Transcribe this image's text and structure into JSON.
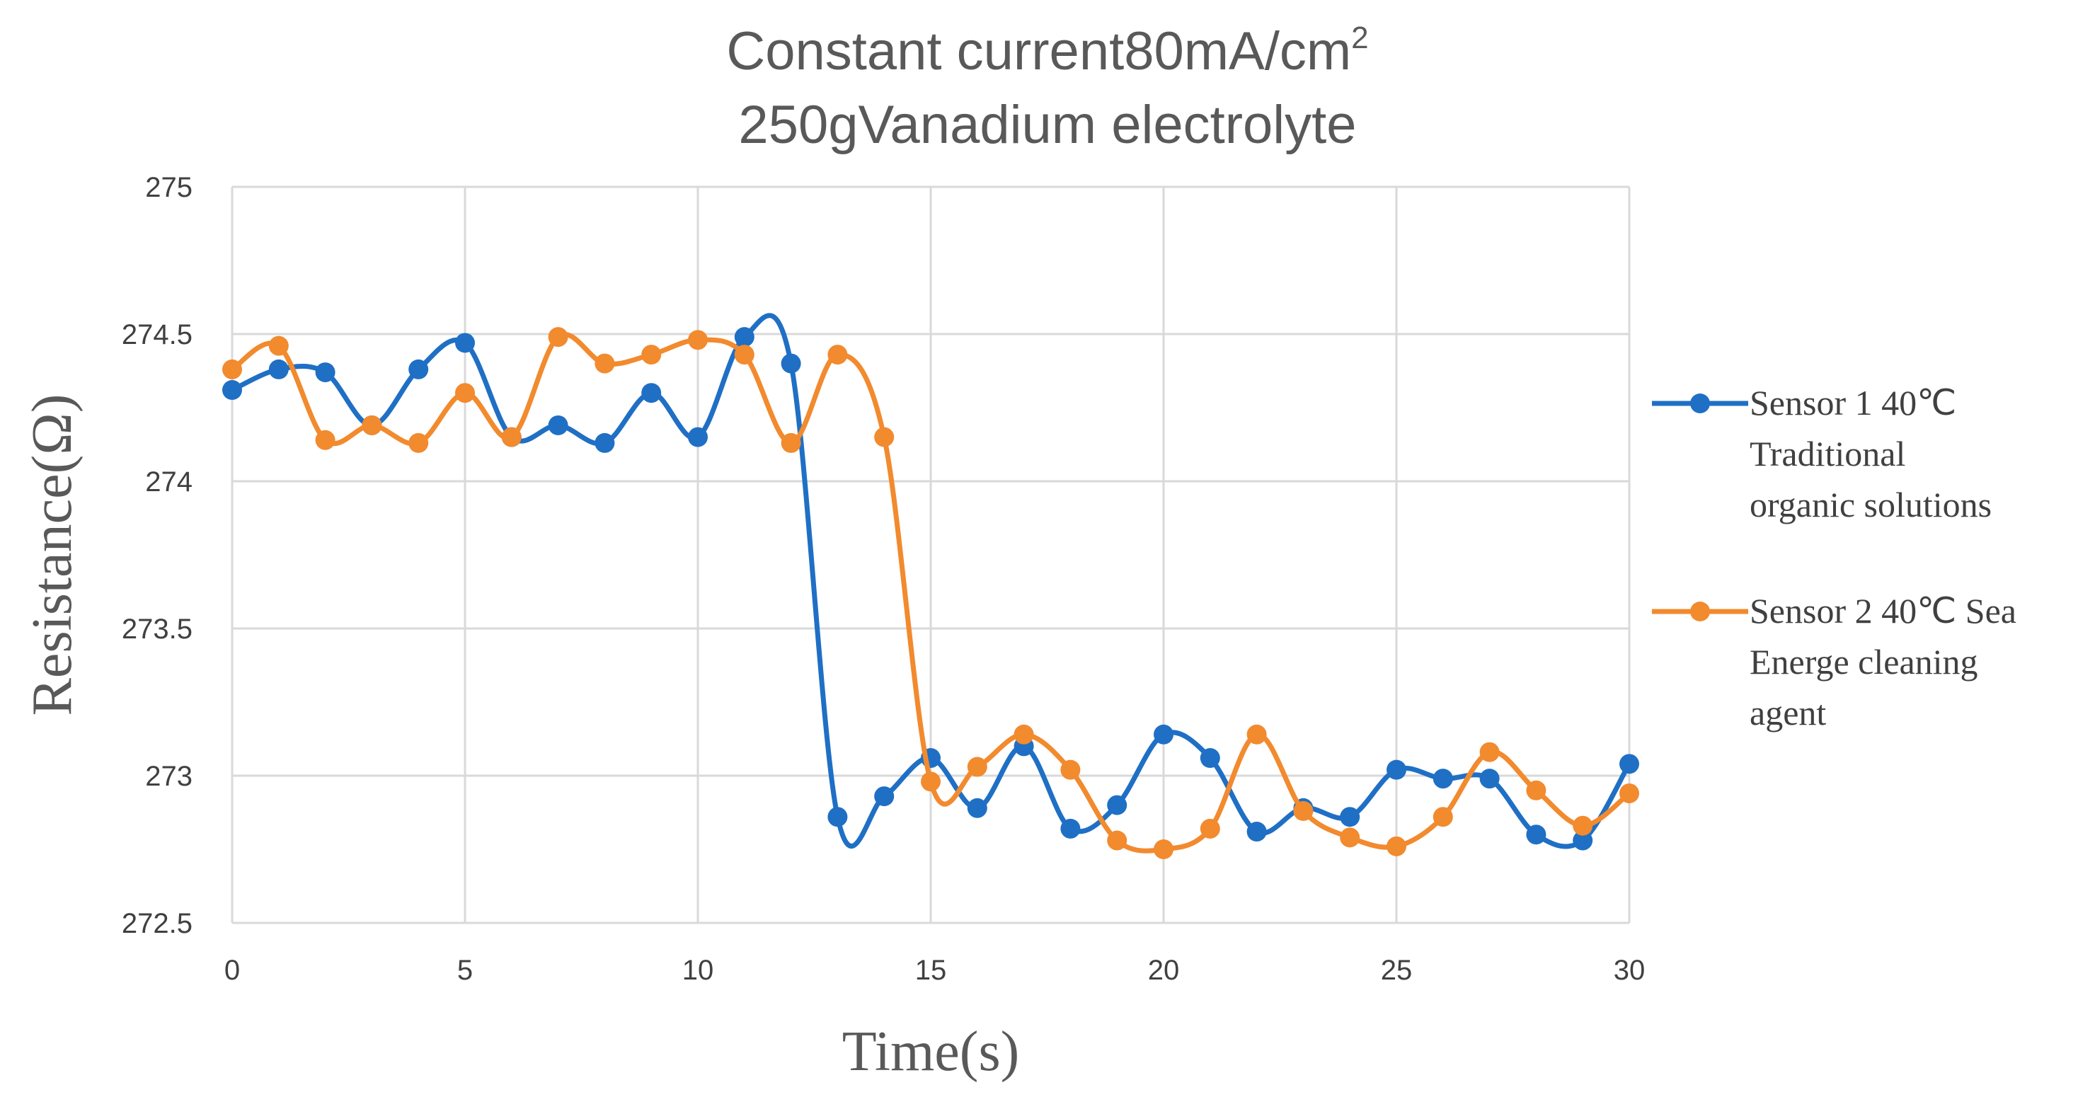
{
  "chart_data": {
    "type": "line",
    "title_line1": "Constant current80mA/cm",
    "title_superscript": "2",
    "title_line2": "250gVanadium electrolyte",
    "xlabel": "Time(s)",
    "ylabel": "Resistance(Ω)",
    "xlim": [
      0,
      30
    ],
    "ylim": [
      272.5,
      275
    ],
    "x_ticks": [
      "0",
      "5",
      "10",
      "15",
      "20",
      "25",
      "30"
    ],
    "y_ticks": [
      "272.5",
      "273",
      "273.5",
      "274",
      "274.5",
      "275"
    ],
    "grid": true,
    "smooth": true,
    "legend_position": "right",
    "x": [
      0,
      1,
      2,
      3,
      4,
      5,
      6,
      7,
      8,
      9,
      10,
      11,
      12,
      13,
      14,
      15,
      16,
      17,
      18,
      19,
      20,
      21,
      22,
      23,
      24,
      25,
      26,
      27,
      28,
      29,
      30
    ],
    "series": [
      {
        "name": "Sensor 1 40℃ Traditional organic solutions",
        "legend_lines": [
          "Sensor 1 40℃",
          "Traditional",
          "organic solutions"
        ],
        "color": "#1f6fc5",
        "values": [
          274.31,
          274.38,
          274.37,
          274.19,
          274.38,
          274.47,
          274.15,
          274.19,
          274.13,
          274.3,
          274.15,
          274.49,
          274.4,
          272.86,
          272.93,
          273.06,
          272.89,
          273.1,
          272.82,
          272.9,
          273.14,
          273.06,
          272.81,
          272.89,
          272.86,
          273.02,
          272.99,
          272.99,
          272.8,
          272.78,
          273.04
        ]
      },
      {
        "name": "Sensor 2 40℃ Sea Energe cleaning agent",
        "legend_lines": [
          "Sensor 2 40℃ Sea",
          "Energe cleaning",
          "agent"
        ],
        "color": "#f28a2e",
        "values": [
          274.38,
          274.46,
          274.14,
          274.19,
          274.13,
          274.3,
          274.15,
          274.49,
          274.4,
          274.43,
          274.48,
          274.43,
          274.13,
          274.43,
          274.15,
          272.98,
          273.03,
          273.14,
          273.02,
          272.78,
          272.75,
          272.82,
          273.14,
          272.88,
          272.79,
          272.76,
          272.86,
          273.08,
          272.95,
          272.83,
          272.94
        ]
      }
    ]
  }
}
